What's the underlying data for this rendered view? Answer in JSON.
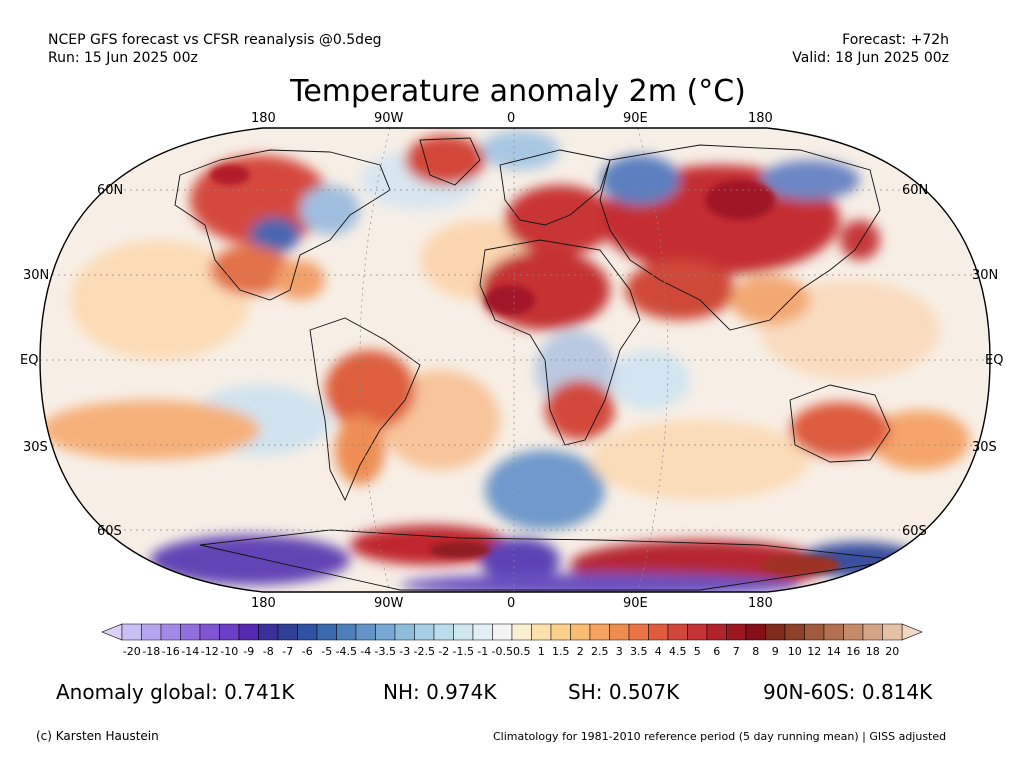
{
  "header": {
    "line1_left": "NCEP GFS forecast vs CFSR reanalysis @0.5deg",
    "line2_left": "Run: 15 Jun 2025 00z",
    "line1_right": "Forecast: +72h",
    "line2_right": "Valid: 18 Jun 2025 00z"
  },
  "title": "Temperature anomaly 2m (°C)",
  "map": {
    "projection": "Robinson",
    "lon_labels_top": [
      "180",
      "90W",
      "0",
      "90E",
      "180"
    ],
    "lon_labels_bottom": [
      "180",
      "90W",
      "0",
      "90E",
      "180"
    ],
    "lat_labels_left": [
      "60N",
      "30N",
      "EQ",
      "30S",
      "60S"
    ],
    "lat_labels_right": [
      "60N",
      "30N",
      "EQ",
      "30S",
      "60S"
    ],
    "gridlines": "dotted"
  },
  "colorbar": {
    "ticks": [
      "-20",
      "-18",
      "-16",
      "-14",
      "-12",
      "-10",
      "-9",
      "-8",
      "-7",
      "-6",
      "-5",
      "-4.5",
      "-4",
      "-3.5",
      "-3",
      "-2.5",
      "-2",
      "-1.5",
      "-1",
      "-0.5",
      "0.5",
      "1",
      "1.5",
      "2",
      "2.5",
      "3",
      "3.5",
      "4",
      "4.5",
      "5",
      "6",
      "7",
      "8",
      "9",
      "10",
      "12",
      "14",
      "16",
      "18",
      "20"
    ],
    "colors": [
      "#c8c0f4",
      "#b6a6ef",
      "#a48ae8",
      "#916fdf",
      "#7f55d4",
      "#6d3ec6",
      "#5629b1",
      "#3c2f9a",
      "#303f98",
      "#2f53a2",
      "#3a6aae",
      "#4d80ba",
      "#6395c6",
      "#78a9d2",
      "#8fbedd",
      "#a6cfe6",
      "#bcdcec",
      "#d0e6f1",
      "#e3eff6",
      "#f4f4f4",
      "#fbefd2",
      "#fbe2ad",
      "#fad08c",
      "#f8bb72",
      "#f5a35e",
      "#f18c50",
      "#ea7447",
      "#df5c3f",
      "#d3473a",
      "#c53234",
      "#b2222c",
      "#9c1622",
      "#860e18",
      "#7f2a1c",
      "#8e4129",
      "#a15a3d",
      "#b27252",
      "#c58c6a",
      "#d6a585",
      "#e6c0a5"
    ],
    "min_arrow_color": "#d8d0f8",
    "max_arrow_color": "#f2d8c4"
  },
  "stats": {
    "global": "Anomaly global: 0.741K",
    "nh": "NH: 0.974K",
    "sh": "SH: 0.507K",
    "arctic": "90N-60S: 0.814K"
  },
  "footer": {
    "credit": "(c) Karsten Haustein",
    "note": "Climatology for 1981-2010 reference period (5 day running mean) | GISS adjusted"
  }
}
